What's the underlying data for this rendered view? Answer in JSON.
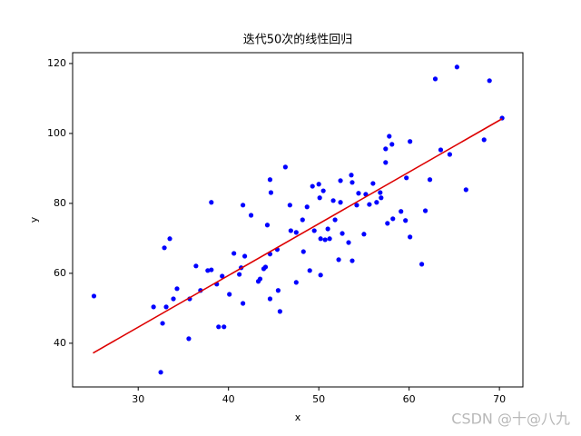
{
  "chart_data": {
    "type": "scatter",
    "title": "迭代50次的线性回归",
    "x_label": "x",
    "y_label": "y",
    "x": [
      25.1,
      31.7,
      32.5,
      32.7,
      32.9,
      33.1,
      33.5,
      33.9,
      34.3,
      35.6,
      35.7,
      36.4,
      36.9,
      37.7,
      38.1,
      38.1,
      38.7,
      38.9,
      39.3,
      39.5,
      40.1,
      40.6,
      41.2,
      41.4,
      41.6,
      41.6,
      41.8,
      42.5,
      43.3,
      43.5,
      43.9,
      44.1,
      44.3,
      44.6,
      44.6,
      44.7,
      44.6,
      45.4,
      45.5,
      45.7,
      46.3,
      46.8,
      46.9,
      47.5,
      47.5,
      48.2,
      48.3,
      48.7,
      49.0,
      49.3,
      49.5,
      50.0,
      50.1,
      50.2,
      50.2,
      50.5,
      50.7,
      51.0,
      51.2,
      51.6,
      51.8,
      52.2,
      52.4,
      52.4,
      52.6,
      53.3,
      53.6,
      53.7,
      53.7,
      54.2,
      54.4,
      55.0,
      55.2,
      55.6,
      56.0,
      56.4,
      56.8,
      56.9,
      57.4,
      57.4,
      57.6,
      57.8,
      58.1,
      58.2,
      59.1,
      59.6,
      59.7,
      60.1,
      60.1,
      61.4,
      61.8,
      62.3,
      62.9,
      63.5,
      64.5,
      65.3,
      66.3,
      68.3,
      68.9,
      70.3
    ],
    "y": [
      53.5,
      50.4,
      31.7,
      45.7,
      67.3,
      50.4,
      69.9,
      52.7,
      55.6,
      41.3,
      52.7,
      62.1,
      55.1,
      60.8,
      80.3,
      61.0,
      56.9,
      44.7,
      59.2,
      44.7,
      54.0,
      65.7,
      59.7,
      61.6,
      79.5,
      51.4,
      64.9,
      76.6,
      57.7,
      58.4,
      61.3,
      61.8,
      73.8,
      86.8,
      65.5,
      83.1,
      52.7,
      66.8,
      55.1,
      49.1,
      90.4,
      79.5,
      72.2,
      71.7,
      57.4,
      75.3,
      66.2,
      79.0,
      60.8,
      84.9,
      72.2,
      85.5,
      81.6,
      69.9,
      59.5,
      83.6,
      69.6,
      72.7,
      69.9,
      80.8,
      75.3,
      63.9,
      86.5,
      80.3,
      71.4,
      68.8,
      88.1,
      86.0,
      63.6,
      79.5,
      82.9,
      71.2,
      82.6,
      79.7,
      85.7,
      80.3,
      83.1,
      81.6,
      91.7,
      95.6,
      74.3,
      99.2,
      96.9,
      75.6,
      77.7,
      75.1,
      87.3,
      97.7,
      70.4,
      62.6,
      77.9,
      86.8,
      115.6,
      95.3,
      94.0,
      119.0,
      83.9,
      98.2,
      115.1,
      104.4
    ],
    "color": "#0000ff",
    "fit": {
      "x": [
        25,
        70.3
      ],
      "y": [
        37.2,
        104.2
      ],
      "color": "#dd0000"
    },
    "xlim": [
      22.74,
      72.6
    ],
    "ylim": [
      27.5,
      123.1
    ],
    "xticks": [
      30,
      40,
      50,
      60,
      70
    ],
    "yticks": [
      40,
      60,
      80,
      100,
      120
    ],
    "watermark": "CSDN @十@八九"
  }
}
